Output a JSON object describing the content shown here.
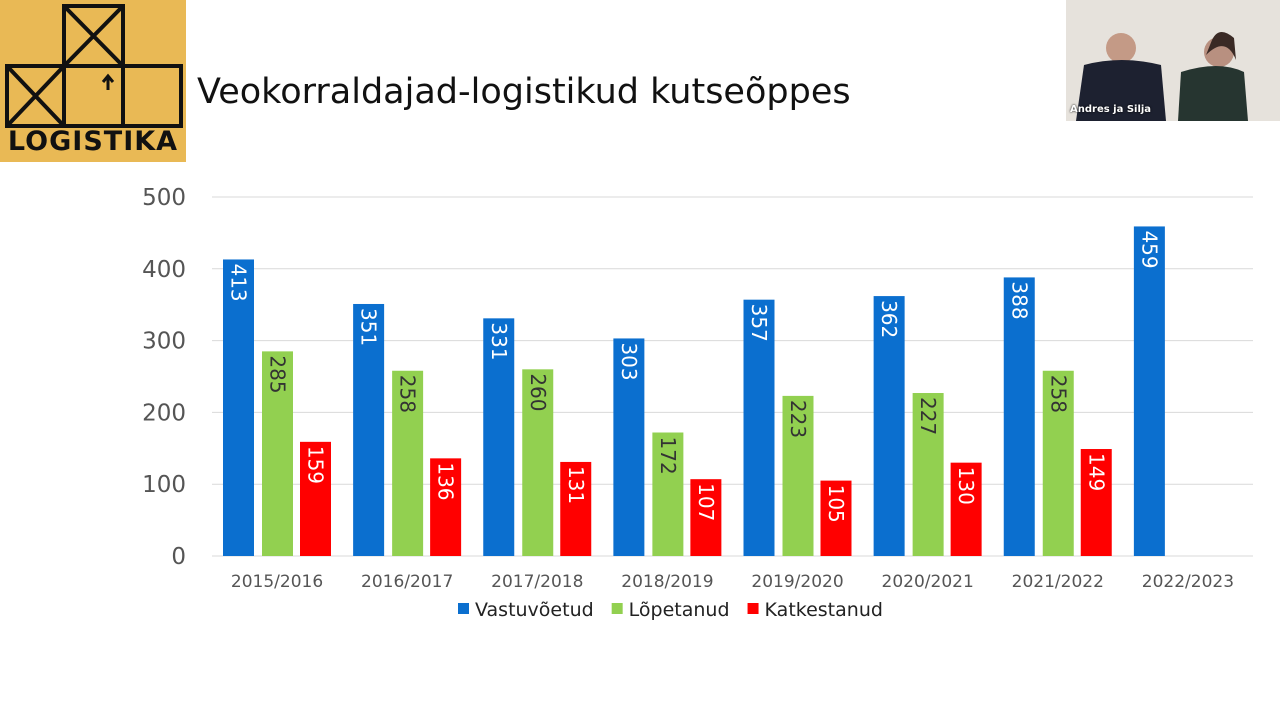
{
  "slide": {
    "title": "Veokorraldajad-logistikud kutseõppes",
    "logo_text": "LOGISTIKA"
  },
  "video": {
    "participant_name": "Andres ja Silja"
  },
  "colors": {
    "Vastuvõetud": "#0b6fcf",
    "Lõpetanud": "#92d050",
    "Katkestanud": "#ff0000",
    "logo_bg": "#e9b955"
  },
  "chart_data": {
    "type": "bar",
    "categories": [
      "2015/2016",
      "2016/2017",
      "2017/2018",
      "2018/2019",
      "2019/2020",
      "2020/2021",
      "2021/2022",
      "2022/2023"
    ],
    "series": [
      {
        "name": "Vastuvõetud",
        "values": [
          413,
          351,
          331,
          303,
          357,
          362,
          388,
          459
        ]
      },
      {
        "name": "Lõpetanud",
        "values": [
          285,
          258,
          260,
          172,
          223,
          227,
          258,
          null
        ]
      },
      {
        "name": "Katkestanud",
        "values": [
          159,
          136,
          131,
          107,
          105,
          130,
          149,
          null
        ]
      }
    ],
    "yticks": [
      0,
      100,
      200,
      300,
      400,
      500
    ],
    "ylim": [
      0,
      500
    ],
    "grid": true,
    "legend": "bottom",
    "data_labels": true
  }
}
